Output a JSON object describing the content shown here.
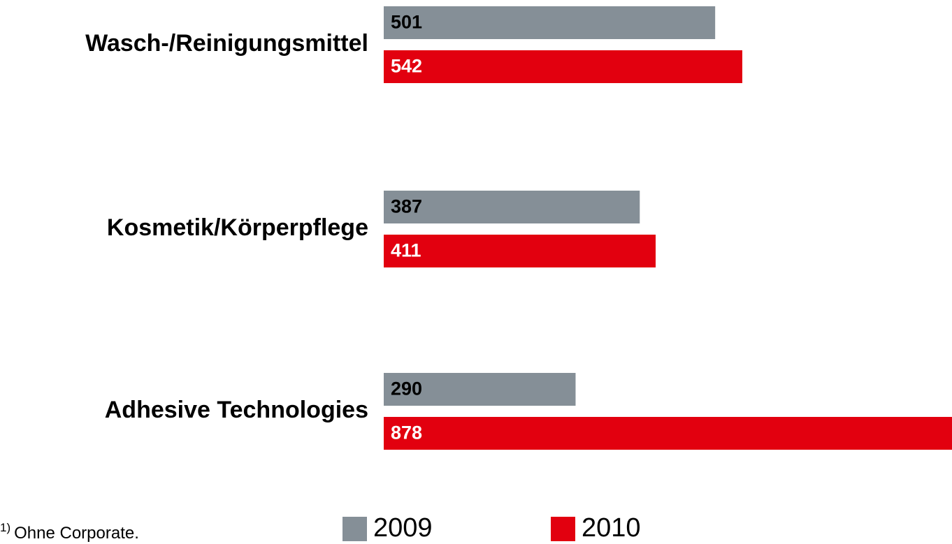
{
  "chart_data": {
    "type": "hbar",
    "categories": [
      "Wasch-/Reinigungsmittel",
      "Kosmetik/Körperpflege",
      "Adhesive Technologies"
    ],
    "series": [
      {
        "name": "2009",
        "color": "#858f97",
        "values": [
          501,
          387,
          290
        ]
      },
      {
        "name": "2010",
        "color": "#e2000f",
        "values": [
          542,
          411,
          878
        ]
      }
    ],
    "xlim": [
      0,
      859
    ],
    "footnote": {
      "marker": "1)",
      "text": "Ohne Corporate."
    }
  }
}
